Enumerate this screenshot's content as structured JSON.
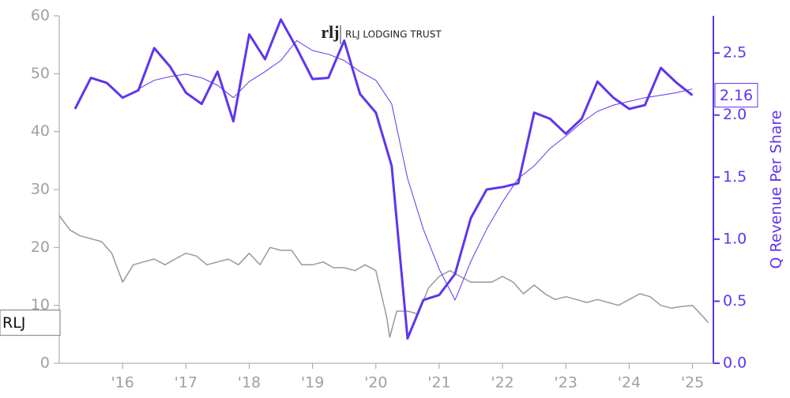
{
  "chart_data": {
    "type": "line",
    "logo": "rlj",
    "title": "RLJ LODGING TRUST",
    "y2label": "Q Revenue Per Share",
    "xlim": [
      2015,
      2025.33
    ],
    "xticks": [
      {
        "value": 2016,
        "label": "'16"
      },
      {
        "value": 2017,
        "label": "'17"
      },
      {
        "value": 2018,
        "label": "'18"
      },
      {
        "value": 2019,
        "label": "'19"
      },
      {
        "value": 2020,
        "label": "'20"
      },
      {
        "value": 2021,
        "label": "'21"
      },
      {
        "value": 2022,
        "label": "'22"
      },
      {
        "value": 2023,
        "label": "'23"
      },
      {
        "value": 2024,
        "label": "'24"
      },
      {
        "value": 2025,
        "label": "'25"
      }
    ],
    "ylim": [
      0,
      60
    ],
    "yticks": [
      0,
      10,
      20,
      30,
      40,
      50,
      60
    ],
    "y2lim": [
      0,
      2.8
    ],
    "y2ticks": [
      {
        "value": 0,
        "label": "0.0"
      },
      {
        "value": 0.5,
        "label": "0.5"
      },
      {
        "value": 1,
        "label": "1.0"
      },
      {
        "value": 1.5,
        "label": "1.5"
      },
      {
        "value": 2,
        "label": "2.0"
      },
      {
        "value": 2.5,
        "label": "2.5"
      }
    ],
    "series": [
      {
        "color": "#5f35ee",
        "axis": "y2",
        "width": 3,
        "x": [
          2015.25,
          2015.5,
          2015.75,
          2016,
          2016.25,
          2016.5,
          2016.75,
          2017,
          2017.25,
          2017.5,
          2017.75,
          2018,
          2018.25,
          2018.5,
          2018.75,
          2019,
          2019.25,
          2019.5,
          2019.75,
          2020,
          2020.25,
          2020.5,
          2020.75,
          2021,
          2021.25,
          2021.5,
          2021.75,
          2022,
          2022.25,
          2022.5,
          2022.75,
          2023,
          2023.25,
          2023.5,
          2023.75,
          2024,
          2024.25,
          2024.5,
          2024.75,
          2025
        ],
        "values": [
          2.05,
          2.3,
          2.26,
          2.14,
          2.2,
          2.54,
          2.39,
          2.18,
          2.09,
          2.35,
          1.95,
          2.65,
          2.45,
          2.77,
          2.54,
          2.29,
          2.3,
          2.6,
          2.17,
          2.02,
          1.59,
          0.2,
          0.51,
          0.55,
          0.72,
          1.17,
          1.4,
          1.42,
          1.45,
          2.02,
          1.97,
          1.85,
          1.97,
          2.27,
          2.14,
          2.05,
          2.08,
          2.38,
          2.26,
          2.16
        ]
      },
      {
        "color": "#5f35ee",
        "axis": "y2",
        "width": 1,
        "x": [
          2015.25,
          2015.5,
          2015.75,
          2016,
          2016.25,
          2016.5,
          2016.75,
          2017,
          2017.25,
          2017.5,
          2017.75,
          2018,
          2018.25,
          2018.5,
          2018.75,
          2019,
          2019.25,
          2019.5,
          2019.75,
          2020,
          2020.25,
          2020.5,
          2020.75,
          2021,
          2021.25,
          2021.5,
          2021.75,
          2022,
          2022.25,
          2022.5,
          2022.75,
          2023,
          2023.25,
          2023.5,
          2023.75,
          2024,
          2024.25,
          2024.5,
          2024.75,
          2025
        ],
        "values": [
          null,
          null,
          null,
          null,
          2.21,
          2.28,
          2.31,
          2.33,
          2.3,
          2.24,
          2.14,
          2.27,
          2.35,
          2.44,
          2.6,
          2.52,
          2.49,
          2.44,
          2.35,
          2.28,
          2.09,
          1.49,
          1.08,
          0.76,
          0.51,
          0.82,
          1.08,
          1.3,
          1.49,
          1.59,
          1.73,
          1.83,
          1.94,
          2.03,
          2.08,
          2.11,
          2.14,
          2.16,
          2.18,
          2.21
        ]
      },
      {
        "name": "RLJ",
        "color": "#999999",
        "axis": "y",
        "width": 1.5,
        "x": [
          2015,
          2015.17,
          2015.33,
          2015.5,
          2015.67,
          2015.83,
          2016,
          2016.17,
          2016.33,
          2016.5,
          2016.67,
          2016.83,
          2017,
          2017.17,
          2017.33,
          2017.5,
          2017.67,
          2017.83,
          2018,
          2018.17,
          2018.33,
          2018.5,
          2018.67,
          2018.83,
          2019,
          2019.17,
          2019.33,
          2019.5,
          2019.67,
          2019.83,
          2020,
          2020.17,
          2020.22,
          2020.33,
          2020.5,
          2020.67,
          2020.83,
          2021,
          2021.17,
          2021.33,
          2021.5,
          2021.67,
          2021.83,
          2022,
          2022.17,
          2022.33,
          2022.5,
          2022.67,
          2022.83,
          2023,
          2023.17,
          2023.33,
          2023.5,
          2023.67,
          2023.83,
          2024,
          2024.17,
          2024.33,
          2024.5,
          2024.67,
          2024.83,
          2025,
          2025.17,
          2025.25
        ],
        "values": [
          25.5,
          23,
          22,
          21.5,
          21,
          19,
          14,
          17,
          17.5,
          18,
          17,
          18,
          19,
          18.5,
          17,
          17.5,
          18,
          17,
          19,
          17,
          20,
          19.5,
          19.5,
          17,
          17,
          17.5,
          16.5,
          16.5,
          16,
          17,
          16,
          8,
          4.5,
          9,
          9,
          8.5,
          13,
          15,
          16,
          15,
          14,
          14,
          14,
          15,
          14,
          12,
          13.5,
          12,
          11,
          11.5,
          11,
          10.5,
          11,
          10.5,
          10,
          11,
          12,
          11.5,
          10,
          9.5,
          9.8,
          10,
          8,
          7
        ]
      }
    ]
  }
}
